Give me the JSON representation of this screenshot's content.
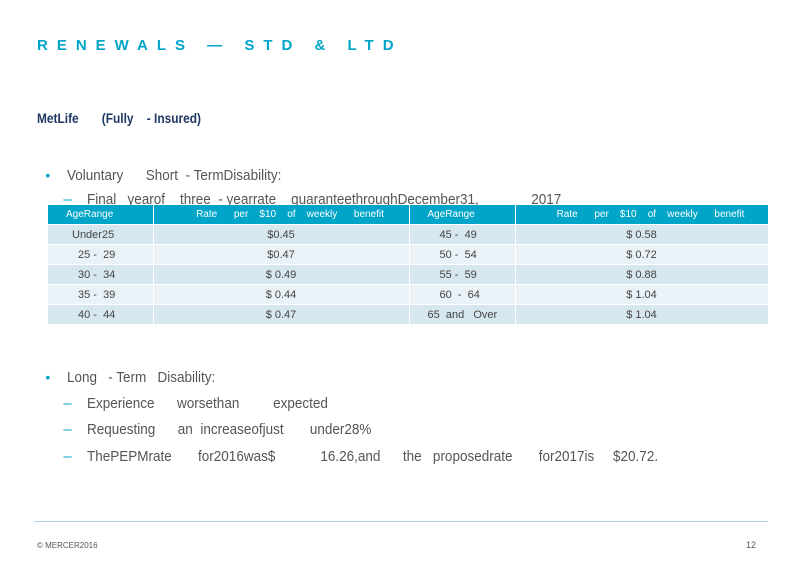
{
  "title": "RENEWALS — STD & LTD",
  "subhead": "MetLife       (Fully    - Insured)",
  "std": {
    "bullet": "Voluntary      Short  - TermDisability:",
    "sub": "Final   yearof    three  - yearrate    guaranteethroughDecember31,              2017"
  },
  "table": {
    "headers": [
      "AgeRange",
      "Rate      per    $10    of    weekly      benefit",
      "AgeRange",
      "Rate      per    $10    of    weekly      benefit"
    ],
    "rows": [
      {
        "age1": "Under25",
        "rate1": "$0.45",
        "age2": "45 -  49",
        "rate2": "$ 0.58"
      },
      {
        "age1": "25 -  29",
        "rate1": "$0.47",
        "age2": "50 -  54",
        "rate2": "$ 0.72"
      },
      {
        "age1": "30 -  34",
        "rate1": "$ 0.49",
        "age2": "55 -  59",
        "rate2": "$ 0.88"
      },
      {
        "age1": "35 -  39",
        "rate1": "$ 0.44",
        "age2": "60  -  64",
        "rate2": "$ 1.04"
      },
      {
        "age1": "40 -  44",
        "rate1": "$ 0.47",
        "age2": "65  and   Over",
        "rate2": "$ 1.04"
      }
    ]
  },
  "ltd": {
    "bullet": "Long   - Term   Disability:",
    "subs": [
      "Experience      worsethan         expected",
      "Requesting      an  increaseofjust       under28%",
      "ThePEPMrate       for2016was$            16.26,and      the   proposedrate       for2017is     $20.72."
    ]
  },
  "footer": {
    "copyright": "© MERCER2016",
    "page": "12"
  }
}
